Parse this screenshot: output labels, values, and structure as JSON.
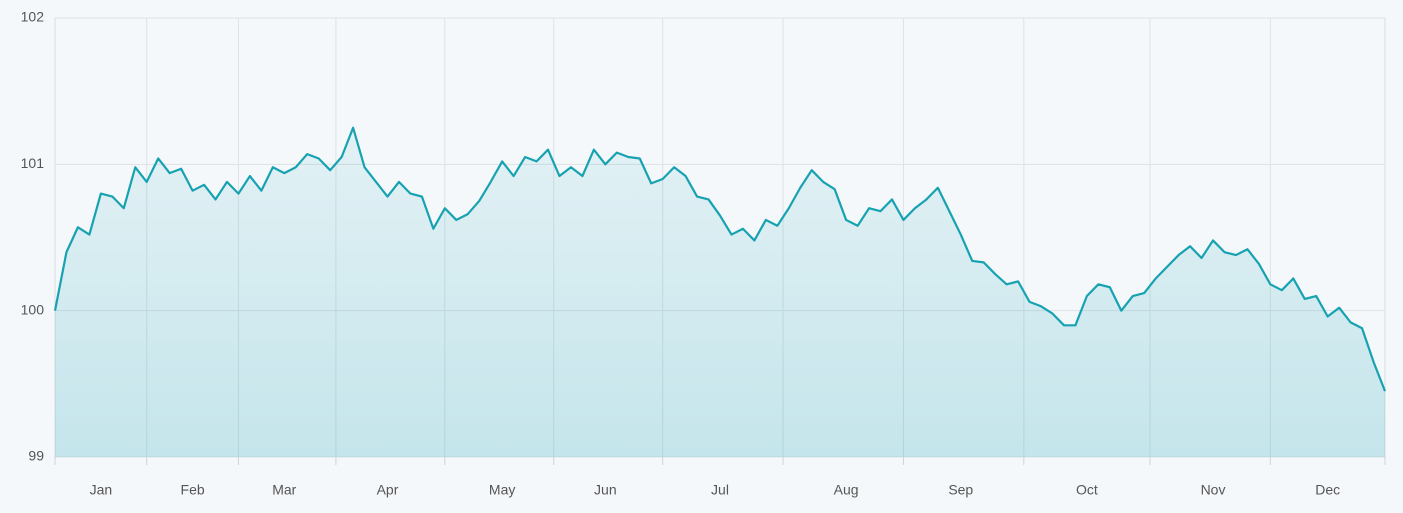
{
  "chart_data": {
    "type": "line",
    "categories": [
      null,
      null,
      null,
      null,
      "Jan",
      null,
      null,
      null,
      null,
      null,
      null,
      null,
      "Feb",
      null,
      null,
      null,
      null,
      null,
      null,
      null,
      "Mar",
      null,
      null,
      null,
      null,
      null,
      null,
      null,
      null,
      "Apr",
      null,
      null,
      null,
      null,
      null,
      null,
      null,
      null,
      null,
      "May",
      null,
      null,
      null,
      null,
      null,
      null,
      null,
      null,
      "Jun",
      null,
      null,
      null,
      null,
      null,
      null,
      null,
      null,
      null,
      "Jul",
      null,
      null,
      null,
      null,
      null,
      null,
      null,
      null,
      null,
      null,
      "Aug",
      null,
      null,
      null,
      null,
      null,
      null,
      null,
      null,
      null,
      "Sep",
      null,
      null,
      null,
      null,
      null,
      null,
      null,
      null,
      null,
      null,
      "Oct",
      null,
      null,
      null,
      null,
      null,
      null,
      null,
      null,
      null,
      null,
      "Nov",
      null,
      null,
      null,
      null,
      null,
      null,
      null,
      null,
      null,
      "Dec",
      null,
      null,
      null,
      null,
      null
    ],
    "values": [
      100.0,
      100.4,
      100.57,
      100.52,
      100.8,
      100.78,
      100.7,
      100.98,
      100.88,
      101.04,
      100.94,
      100.97,
      100.82,
      100.86,
      100.76,
      100.88,
      100.8,
      100.92,
      100.82,
      100.98,
      100.94,
      100.98,
      101.07,
      101.04,
      100.96,
      101.05,
      101.25,
      100.98,
      100.88,
      100.78,
      100.88,
      100.8,
      100.78,
      100.56,
      100.7,
      100.62,
      100.66,
      100.75,
      100.88,
      101.02,
      100.92,
      101.05,
      101.02,
      101.1,
      100.92,
      100.98,
      100.92,
      101.1,
      101.0,
      101.08,
      101.05,
      101.04,
      100.87,
      100.9,
      100.98,
      100.92,
      100.78,
      100.76,
      100.65,
      100.52,
      100.56,
      100.48,
      100.62,
      100.58,
      100.7,
      100.84,
      100.96,
      100.88,
      100.83,
      100.62,
      100.58,
      100.7,
      100.68,
      100.76,
      100.62,
      100.7,
      100.76,
      100.84,
      100.68,
      100.52,
      100.34,
      100.33,
      100.25,
      100.18,
      100.2,
      100.06,
      100.03,
      99.98,
      99.9,
      99.9,
      100.1,
      100.18,
      100.16,
      100.0,
      100.1,
      100.12,
      100.22,
      100.3,
      100.38,
      100.44,
      100.36,
      100.48,
      100.4,
      100.38,
      100.42,
      100.32,
      100.18,
      100.14,
      100.22,
      100.08,
      100.1,
      99.96,
      100.02,
      99.92,
      99.88,
      99.65,
      99.45
    ],
    "color": "#17a2b2",
    "ylim": [
      99,
      102
    ],
    "yticks": [
      99,
      100,
      101,
      102
    ],
    "grid": true
  }
}
